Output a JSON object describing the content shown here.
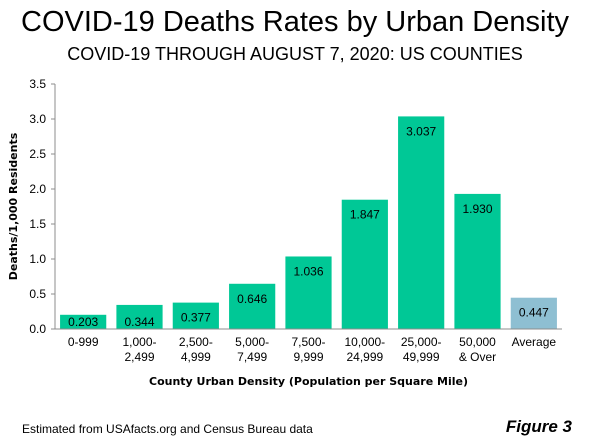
{
  "chart_data": {
    "type": "bar",
    "title": "COVID-19 Deaths Rates by Urban Density",
    "subtitle": "COVID-19 THROUGH AUGUST 7, 2020: US COUNTIES",
    "xlabel": "County Urban Density (Population per Square Mile)",
    "ylabel": "Deaths/1,000 Residents",
    "ylim": [
      0,
      3.5
    ],
    "yticks": [
      "0.0",
      "0.5",
      "1.0",
      "1.5",
      "2.0",
      "2.5",
      "3.0",
      "3.5"
    ],
    "grid": false,
    "categories": [
      [
        "0-999"
      ],
      [
        "1,000-",
        "2,499"
      ],
      [
        "2,500-",
        "4,999"
      ],
      [
        "5,000-",
        "7,499"
      ],
      [
        "7,500-",
        "9,999"
      ],
      [
        "10,000-",
        "24,999"
      ],
      [
        "25,000-",
        "49,999"
      ],
      [
        "50,000",
        "& Over"
      ],
      [
        "Average"
      ]
    ],
    "values": [
      0.203,
      0.344,
      0.377,
      0.646,
      1.036,
      1.847,
      3.037,
      1.93,
      0.447
    ],
    "labels": [
      "0.203",
      "0.344",
      "0.377",
      "0.646",
      "1.036",
      "1.847",
      "3.037",
      "1.930",
      "0.447"
    ],
    "colors": {
      "bar": "#00c896",
      "average_bar": "#8ebfd2",
      "axis": "#8c8c8c"
    }
  },
  "footer": {
    "source": "Estimated from USAfacts.org and Census Bureau data",
    "figure": "Figure 3"
  }
}
